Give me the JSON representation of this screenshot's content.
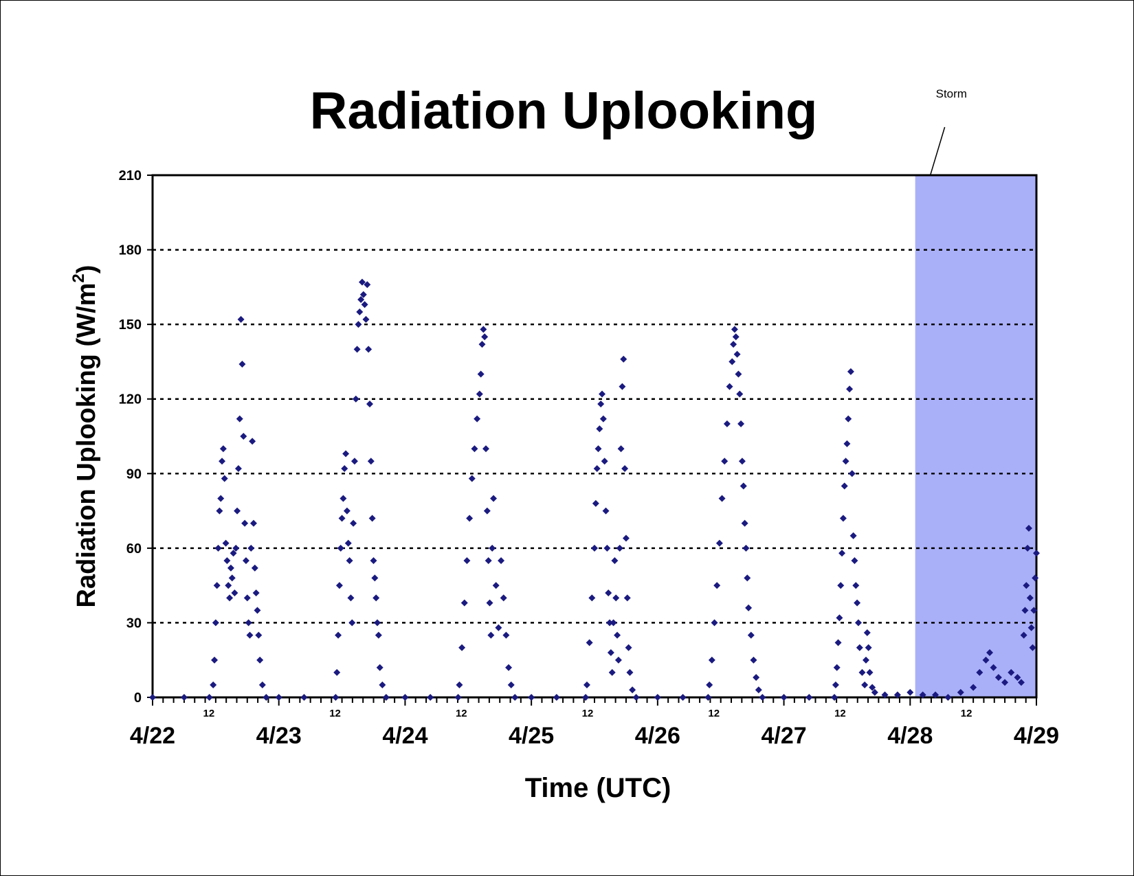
{
  "chart_data": {
    "type": "scatter",
    "title": "Radiation Uplooking",
    "xlabel": "Time (UTC)",
    "ylabel": "Radiation Uplooking (W/m",
    "ylabel_sup": "2",
    "ylabel_close": ")",
    "ylim": [
      0,
      210
    ],
    "yticks": [
      0,
      30,
      60,
      90,
      120,
      150,
      180,
      210
    ],
    "grid": "horizontal dotted",
    "x_day_labels": [
      "4/22",
      "4/23",
      "4/24",
      "4/25",
      "4/26",
      "4/27",
      "4/28",
      "4/29"
    ],
    "x_noon_label": "12",
    "marker_color": "#1a1a80",
    "annotation": {
      "text": "Storm",
      "shaded_x_range_days": [
        6.04,
        7.0
      ],
      "shade_color": "#aab0f8"
    },
    "series": [
      {
        "points": [
          [
            0.0,
            0
          ],
          [
            0.25,
            0
          ],
          [
            0.45,
            0
          ],
          [
            0.48,
            5
          ],
          [
            0.49,
            15
          ],
          [
            0.5,
            30
          ],
          [
            0.51,
            45
          ],
          [
            0.52,
            60
          ],
          [
            0.53,
            75
          ],
          [
            0.54,
            80
          ],
          [
            0.55,
            95
          ],
          [
            0.56,
            100
          ],
          [
            0.57,
            88
          ],
          [
            0.58,
            62
          ],
          [
            0.59,
            55
          ],
          [
            0.6,
            45
          ],
          [
            0.61,
            40
          ],
          [
            0.62,
            52
          ],
          [
            0.63,
            48
          ],
          [
            0.64,
            58
          ],
          [
            0.65,
            42
          ],
          [
            0.66,
            60
          ],
          [
            0.67,
            75
          ],
          [
            0.68,
            92
          ],
          [
            0.69,
            112
          ],
          [
            0.7,
            152
          ],
          [
            0.71,
            134
          ],
          [
            0.72,
            105
          ],
          [
            0.73,
            70
          ],
          [
            0.74,
            55
          ],
          [
            0.75,
            40
          ],
          [
            0.76,
            30
          ],
          [
            0.77,
            25
          ],
          [
            0.78,
            60
          ],
          [
            0.79,
            103
          ],
          [
            0.8,
            70
          ],
          [
            0.81,
            52
          ],
          [
            0.82,
            42
          ],
          [
            0.83,
            35
          ],
          [
            0.84,
            25
          ],
          [
            0.85,
            15
          ],
          [
            0.87,
            5
          ],
          [
            0.9,
            0
          ],
          [
            1.0,
            0
          ],
          [
            1.2,
            0
          ],
          [
            1.45,
            0
          ],
          [
            1.46,
            10
          ],
          [
            1.47,
            25
          ],
          [
            1.48,
            45
          ],
          [
            1.49,
            60
          ],
          [
            1.5,
            72
          ],
          [
            1.51,
            80
          ],
          [
            1.52,
            92
          ],
          [
            1.53,
            98
          ],
          [
            1.54,
            75
          ],
          [
            1.55,
            62
          ],
          [
            1.56,
            55
          ],
          [
            1.57,
            40
          ],
          [
            1.58,
            30
          ],
          [
            1.59,
            70
          ],
          [
            1.6,
            95
          ],
          [
            1.61,
            120
          ],
          [
            1.62,
            140
          ],
          [
            1.63,
            150
          ],
          [
            1.64,
            155
          ],
          [
            1.65,
            160
          ],
          [
            1.66,
            167
          ],
          [
            1.67,
            162
          ],
          [
            1.68,
            158
          ],
          [
            1.69,
            152
          ],
          [
            1.7,
            166
          ],
          [
            1.71,
            140
          ],
          [
            1.72,
            118
          ],
          [
            1.73,
            95
          ],
          [
            1.74,
            72
          ],
          [
            1.75,
            55
          ],
          [
            1.76,
            48
          ],
          [
            1.77,
            40
          ],
          [
            1.78,
            30
          ],
          [
            1.79,
            25
          ],
          [
            1.8,
            12
          ],
          [
            1.82,
            5
          ],
          [
            1.85,
            0
          ],
          [
            2.0,
            0
          ],
          [
            2.2,
            0
          ],
          [
            2.42,
            0
          ],
          [
            2.43,
            5
          ],
          [
            2.45,
            20
          ],
          [
            2.47,
            38
          ],
          [
            2.49,
            55
          ],
          [
            2.51,
            72
          ],
          [
            2.53,
            88
          ],
          [
            2.55,
            100
          ],
          [
            2.57,
            112
          ],
          [
            2.59,
            122
          ],
          [
            2.6,
            130
          ],
          [
            2.61,
            142
          ],
          [
            2.62,
            148
          ],
          [
            2.63,
            145
          ],
          [
            2.64,
            100
          ],
          [
            2.65,
            75
          ],
          [
            2.66,
            55
          ],
          [
            2.67,
            38
          ],
          [
            2.68,
            25
          ],
          [
            2.69,
            60
          ],
          [
            2.7,
            80
          ],
          [
            2.72,
            45
          ],
          [
            2.74,
            28
          ],
          [
            2.76,
            55
          ],
          [
            2.78,
            40
          ],
          [
            2.8,
            25
          ],
          [
            2.82,
            12
          ],
          [
            2.84,
            5
          ],
          [
            2.87,
            0
          ],
          [
            3.0,
            0
          ],
          [
            3.2,
            0
          ],
          [
            3.43,
            0
          ],
          [
            3.44,
            5
          ],
          [
            3.46,
            22
          ],
          [
            3.48,
            40
          ],
          [
            3.5,
            60
          ],
          [
            3.51,
            78
          ],
          [
            3.52,
            92
          ],
          [
            3.53,
            100
          ],
          [
            3.54,
            108
          ],
          [
            3.55,
            118
          ],
          [
            3.56,
            122
          ],
          [
            3.57,
            112
          ],
          [
            3.58,
            95
          ],
          [
            3.59,
            75
          ],
          [
            3.6,
            60
          ],
          [
            3.61,
            42
          ],
          [
            3.62,
            30
          ],
          [
            3.63,
            18
          ],
          [
            3.64,
            10
          ],
          [
            3.65,
            30
          ],
          [
            3.66,
            55
          ],
          [
            3.67,
            40
          ],
          [
            3.68,
            25
          ],
          [
            3.69,
            15
          ],
          [
            3.7,
            60
          ],
          [
            3.71,
            100
          ],
          [
            3.72,
            125
          ],
          [
            3.73,
            136
          ],
          [
            3.74,
            92
          ],
          [
            3.75,
            64
          ],
          [
            3.76,
            40
          ],
          [
            3.77,
            20
          ],
          [
            3.78,
            10
          ],
          [
            3.8,
            3
          ],
          [
            3.83,
            0
          ],
          [
            4.0,
            0
          ],
          [
            4.2,
            0
          ],
          [
            4.4,
            0
          ],
          [
            4.41,
            5
          ],
          [
            4.43,
            15
          ],
          [
            4.45,
            30
          ],
          [
            4.47,
            45
          ],
          [
            4.49,
            62
          ],
          [
            4.51,
            80
          ],
          [
            4.53,
            95
          ],
          [
            4.55,
            110
          ],
          [
            4.57,
            125
          ],
          [
            4.59,
            135
          ],
          [
            4.6,
            142
          ],
          [
            4.61,
            148
          ],
          [
            4.62,
            145
          ],
          [
            4.63,
            138
          ],
          [
            4.64,
            130
          ],
          [
            4.65,
            122
          ],
          [
            4.66,
            110
          ],
          [
            4.67,
            95
          ],
          [
            4.68,
            85
          ],
          [
            4.69,
            70
          ],
          [
            4.7,
            60
          ],
          [
            4.71,
            48
          ],
          [
            4.72,
            36
          ],
          [
            4.74,
            25
          ],
          [
            4.76,
            15
          ],
          [
            4.78,
            8
          ],
          [
            4.8,
            3
          ],
          [
            4.83,
            0
          ],
          [
            5.0,
            0
          ],
          [
            5.2,
            0
          ],
          [
            5.4,
            0
          ],
          [
            5.41,
            5
          ],
          [
            5.42,
            12
          ],
          [
            5.43,
            22
          ],
          [
            5.44,
            32
          ],
          [
            5.45,
            45
          ],
          [
            5.46,
            58
          ],
          [
            5.47,
            72
          ],
          [
            5.48,
            85
          ],
          [
            5.49,
            95
          ],
          [
            5.5,
            102
          ],
          [
            5.51,
            112
          ],
          [
            5.52,
            124
          ],
          [
            5.53,
            131
          ],
          [
            5.54,
            90
          ],
          [
            5.55,
            65
          ],
          [
            5.56,
            55
          ],
          [
            5.57,
            45
          ],
          [
            5.58,
            38
          ],
          [
            5.59,
            30
          ],
          [
            5.6,
            20
          ],
          [
            5.62,
            10
          ],
          [
            5.64,
            5
          ],
          [
            5.65,
            15
          ],
          [
            5.66,
            26
          ],
          [
            5.67,
            20
          ],
          [
            5.68,
            10
          ],
          [
            5.7,
            4
          ],
          [
            5.72,
            2
          ],
          [
            5.8,
            1
          ],
          [
            5.9,
            1
          ],
          [
            6.0,
            2
          ],
          [
            6.1,
            1
          ],
          [
            6.2,
            1
          ],
          [
            6.3,
            0
          ],
          [
            6.4,
            2
          ],
          [
            6.5,
            4
          ],
          [
            6.55,
            10
          ],
          [
            6.6,
            15
          ],
          [
            6.63,
            18
          ],
          [
            6.66,
            12
          ],
          [
            6.7,
            8
          ],
          [
            6.75,
            6
          ],
          [
            6.8,
            10
          ],
          [
            6.85,
            8
          ],
          [
            6.88,
            6
          ],
          [
            6.9,
            25
          ],
          [
            6.91,
            35
          ],
          [
            6.92,
            45
          ],
          [
            6.93,
            60
          ],
          [
            6.94,
            68
          ],
          [
            6.95,
            40
          ],
          [
            6.96,
            28
          ],
          [
            6.97,
            20
          ],
          [
            6.98,
            35
          ],
          [
            6.99,
            48
          ],
          [
            7.0,
            58
          ]
        ]
      }
    ]
  }
}
